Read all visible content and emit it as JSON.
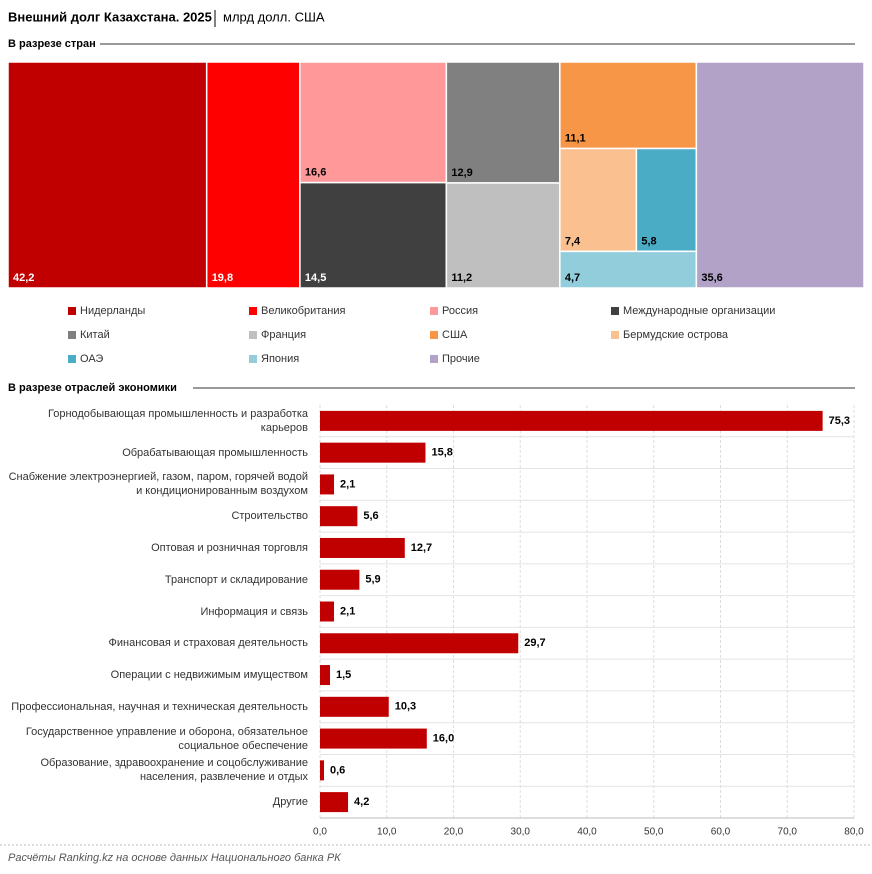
{
  "title": "Внешний долг Казахстана. 2025",
  "subtitle": "млрд долл. США",
  "source": "Расчёты Ranking.kz на основе данных Национального банка РК",
  "chart_data": [
    {
      "type": "treemap",
      "title": "В разрезе стран",
      "categories": [
        "Нидерланды",
        "Великобритания",
        "Россия",
        "Международные организации",
        "Китай",
        "Франция",
        "США",
        "Бермудские острова",
        "ОАЭ",
        "Япония",
        "Прочие"
      ],
      "values": [
        42.2,
        19.8,
        16.6,
        14.5,
        12.9,
        11.2,
        11.1,
        7.4,
        5.8,
        4.7,
        35.6
      ],
      "value_labels": [
        "42,2",
        "19,8",
        "16,6",
        "14,5",
        "12,9",
        "11,2",
        "11,1",
        "7,4",
        "5,8",
        "4,7",
        "35,6"
      ],
      "colors": [
        "#c00000",
        "#ff0000",
        "#ff9999",
        "#404040",
        "#808080",
        "#bfbfbf",
        "#f79646",
        "#fac090",
        "#4bacc6",
        "#92cddc",
        "#b3a2c7"
      ]
    },
    {
      "type": "bar",
      "orientation": "horizontal",
      "title": "В разрезе отраслей экономики",
      "categories": [
        "Горнодобывающая промышленность и разработка карьеров",
        "Обрабатывающая промышленность",
        "Снабжение электроэнергией, газом, паром, горячей водой и кондиционированным воздухом",
        "Строительство",
        "Оптовая и розничная торговля",
        "Транспорт и складирование",
        "Информация и связь",
        "Финансовая и страховая деятельность",
        "Операции с недвижимым имуществом",
        "Профессиональная, научная и техническая деятельность",
        "Государственное управление и оборона, обязательное социальное обеспечение",
        "Образование, здравоохранение и соцобслуживание населения, развлечение и отдых",
        "Другие"
      ],
      "values": [
        75.3,
        15.8,
        2.1,
        5.6,
        12.7,
        5.9,
        2.1,
        29.7,
        1.5,
        10.3,
        16.0,
        0.6,
        4.2
      ],
      "value_labels": [
        "75,3",
        "15,8",
        "2,1",
        "5,6",
        "12,7",
        "5,9",
        "2,1",
        "29,7",
        "1,5",
        "10,3",
        "16,0",
        "0,6",
        "4,2"
      ],
      "color": "#c00000",
      "xlim": [
        0,
        80
      ],
      "xticks": [
        {
          "value": 0,
          "label": "0,0"
        },
        {
          "value": 10,
          "label": "10,0"
        },
        {
          "value": 20,
          "label": "20,0"
        },
        {
          "value": 30,
          "label": "30,0"
        },
        {
          "value": 40,
          "label": "40,0"
        },
        {
          "value": 50,
          "label": "50,0"
        },
        {
          "value": 60,
          "label": "60,0"
        },
        {
          "value": 70,
          "label": "70,0"
        },
        {
          "value": 80,
          "label": "80,0"
        }
      ],
      "grid": true
    }
  ]
}
